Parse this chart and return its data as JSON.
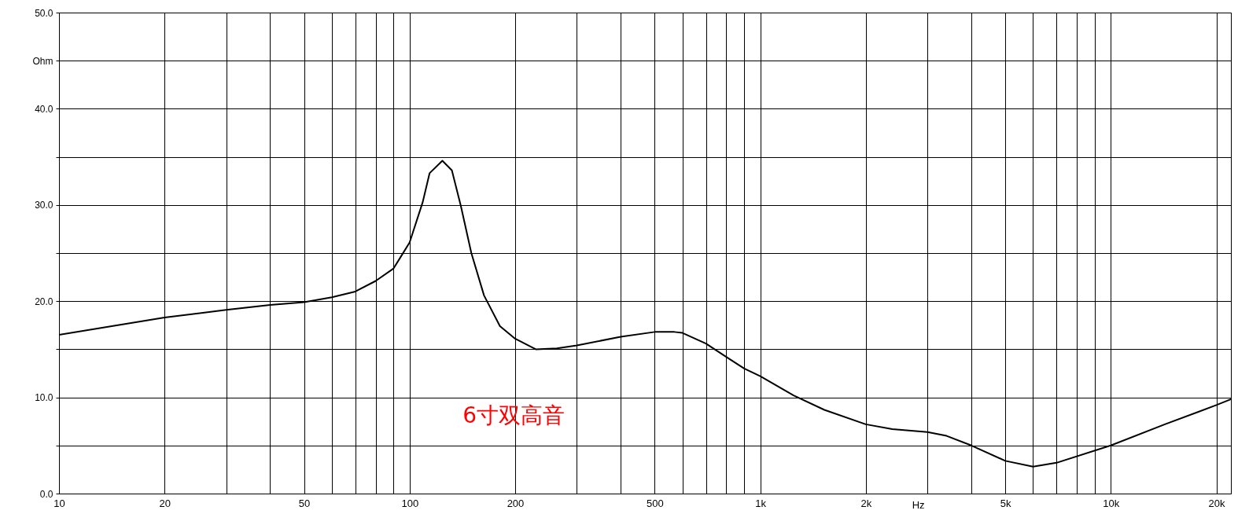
{
  "chart_data": {
    "type": "line",
    "xlabel": "Hz",
    "log": "x",
    "grid": true,
    "legend": false,
    "marker": "none",
    "line_style": "solid",
    "xlim": [
      10,
      22000
    ],
    "xticks": [
      10,
      20,
      {
        "value": 30,
        "label": null
      },
      {
        "value": 40,
        "label": null
      },
      50,
      {
        "value": 60,
        "label": null
      },
      {
        "value": 70,
        "label": null
      },
      {
        "value": 80,
        "label": null
      },
      {
        "value": 90,
        "label": null
      },
      100,
      200,
      {
        "value": 300,
        "label": null
      },
      {
        "value": 400,
        "label": null
      },
      500,
      {
        "value": 600,
        "label": null
      },
      {
        "value": 700,
        "label": null
      },
      {
        "value": 800,
        "label": null
      },
      {
        "value": 900,
        "label": null
      },
      {
        "value": 1000,
        "label": "1k"
      },
      {
        "value": 2000,
        "label": "2k"
      },
      {
        "value": 3000,
        "label": null
      },
      {
        "value": 4000,
        "label": null
      },
      {
        "value": 5000,
        "label": "5k"
      },
      {
        "value": 6000,
        "label": null
      },
      {
        "value": 7000,
        "label": null
      },
      {
        "value": 8000,
        "label": null
      },
      {
        "value": 9000,
        "label": null
      },
      {
        "value": 10000,
        "label": "10k"
      },
      {
        "value": 20000,
        "label": "20k"
      }
    ],
    "ylim": [
      0,
      50
    ],
    "yticks": [
      {
        "value": 0,
        "label": "0.0"
      },
      {
        "value": 5,
        "label": null
      },
      {
        "value": 10,
        "label": "10.0"
      },
      {
        "value": 15,
        "label": null
      },
      {
        "value": 20,
        "label": "20.0"
      },
      {
        "value": 25,
        "label": null
      },
      {
        "value": 30,
        "label": "30.0"
      },
      {
        "value": 35,
        "label": null
      },
      {
        "value": 40,
        "label": "40.0"
      },
      {
        "value": 45,
        "label": "Ohm"
      },
      {
        "value": 50,
        "label": "50.0"
      }
    ],
    "annotations": [
      "6寸双高音"
    ],
    "series": [
      {
        "color": "#000000",
        "x": [
          10,
          20,
          30,
          40,
          50,
          60,
          70,
          80,
          90,
          100,
          109,
          114,
          124,
          132,
          140,
          150,
          163,
          181,
          200,
          229,
          263,
          300,
          400,
          500,
          569,
          600,
          700,
          800,
          900,
          1000,
          1245,
          1524,
          2000,
          2380,
          3000,
          3400,
          4000,
          5000,
          6000,
          7000,
          10000,
          14260,
          20000,
          22000
        ],
        "values": [
          16.5,
          18.3,
          19.1,
          19.6,
          19.9,
          20.4,
          21.0,
          22.1,
          23.4,
          26.1,
          30.3,
          33.3,
          34.6,
          33.6,
          29.9,
          25.0,
          20.6,
          17.4,
          16.1,
          15.0,
          15.1,
          15.4,
          16.3,
          16.8,
          16.8,
          16.7,
          15.6,
          14.2,
          13.0,
          12.2,
          10.2,
          8.7,
          7.2,
          6.7,
          6.4,
          6.0,
          5.0,
          3.4,
          2.8,
          3.2,
          5.0,
          7.2,
          9.2,
          9.8
        ]
      }
    ]
  }
}
